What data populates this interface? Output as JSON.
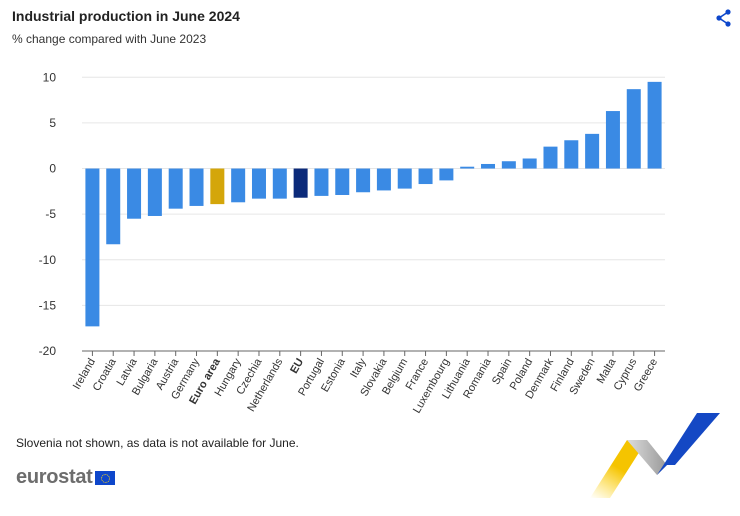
{
  "header": {
    "title": "Industrial production in June 2024",
    "subtitle": "% change compared with June 2023",
    "share_icon": "share-icon"
  },
  "footer": {
    "note": "Slovenia not shown, as data is not available for June.",
    "logo": "eurostat"
  },
  "colors": {
    "country": "#3a8ae4",
    "euro_area": "#d4a60a",
    "eu": "#0b2a7a"
  },
  "chart_data": {
    "type": "bar",
    "title": "Industrial production in June 2024",
    "subtitle": "% change compared with June 2023",
    "categories": [
      "Ireland",
      "Croatia",
      "Latvia",
      "Bulgaria",
      "Austria",
      "Germany",
      "Euro area",
      "Hungary",
      "Czechia",
      "Netherlands",
      "EU",
      "Portugal",
      "Estonia",
      "Italy",
      "Slovakia",
      "Belgium",
      "France",
      "Luxembourg",
      "Lithuania",
      "Romania",
      "Spain",
      "Poland",
      "Denmark",
      "Finland",
      "Sweden",
      "Malta",
      "Cyprus",
      "Greece"
    ],
    "values": [
      -17.3,
      -8.3,
      -5.5,
      -5.2,
      -4.4,
      -4.1,
      -3.9,
      -3.7,
      -3.3,
      -3.3,
      -3.2,
      -3.0,
      -2.9,
      -2.6,
      -2.4,
      -2.2,
      -1.7,
      -1.3,
      0.2,
      0.5,
      0.8,
      1.1,
      2.4,
      3.1,
      3.8,
      6.3,
      8.7,
      9.5
    ],
    "highlight": {
      "Euro area": "euro_area",
      "EU": "eu"
    },
    "bold_categories": [
      "Euro area",
      "EU"
    ],
    "ylim": [
      -20,
      10
    ],
    "yticks": [
      10,
      5,
      0,
      -5,
      -10,
      -15,
      -20
    ],
    "grid": true,
    "legend": "none"
  }
}
